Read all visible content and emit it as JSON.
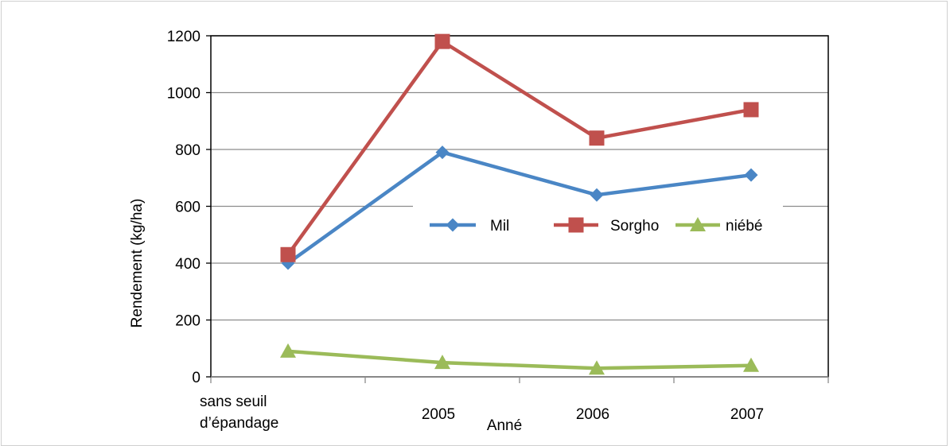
{
  "chart_data": {
    "type": "line",
    "title": "",
    "xlabel": "Anné",
    "ylabel": "Rendement (kg/ha)",
    "categories": [
      "sans seuil d’épandage",
      "2005",
      "2006",
      "2007"
    ],
    "category_lines": [
      [
        "sans seuil",
        "d’épandage"
      ],
      [
        "2005"
      ],
      [
        "2006"
      ],
      [
        "2007"
      ]
    ],
    "ylim": [
      0,
      1200
    ],
    "yticks": [
      "0",
      "200",
      "400",
      "600",
      "800",
      "1000",
      "1200"
    ],
    "grid": true,
    "legend_position": "center-right",
    "series": [
      {
        "name": "Mil",
        "color": "#4a86c5",
        "marker": "diamond",
        "values": [
          400,
          790,
          640,
          710
        ]
      },
      {
        "name": "Sorgho",
        "color": "#c0504d",
        "marker": "square",
        "values": [
          430,
          1180,
          840,
          940
        ]
      },
      {
        "name": "niébé",
        "color": "#9bbb59",
        "marker": "triangle",
        "values": [
          90,
          50,
          30,
          40
        ]
      }
    ]
  }
}
